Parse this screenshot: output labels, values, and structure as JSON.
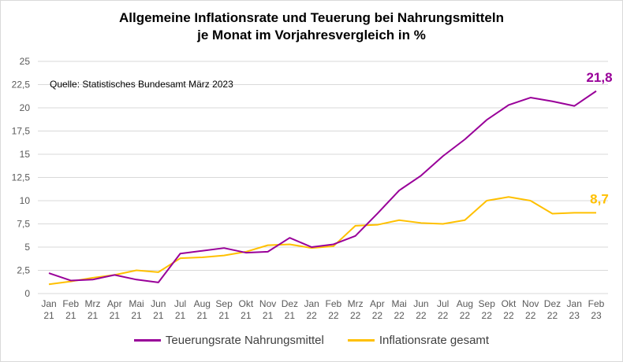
{
  "chart_data": {
    "type": "line",
    "title": [
      "Allgemeine Inflationsrate und Teuerung bei Nahrungsmitteln",
      "je Monat im Vorjahresvergleich in %"
    ],
    "annotation": "Quelle: Statistisches Bundesamt März 2023",
    "categories": [
      [
        "Jan",
        "21"
      ],
      [
        "Feb",
        "21"
      ],
      [
        "Mrz",
        "21"
      ],
      [
        "Apr",
        "21"
      ],
      [
        "Mai",
        "21"
      ],
      [
        "Jun",
        "21"
      ],
      [
        "Jul",
        "21"
      ],
      [
        "Aug",
        "21"
      ],
      [
        "Sep",
        "21"
      ],
      [
        "Okt",
        "21"
      ],
      [
        "Nov",
        "21"
      ],
      [
        "Dez",
        "21"
      ],
      [
        "Jan",
        "22"
      ],
      [
        "Feb",
        "22"
      ],
      [
        "Mrz",
        "22"
      ],
      [
        "Apr",
        "22"
      ],
      [
        "Mai",
        "22"
      ],
      [
        "Jun",
        "22"
      ],
      [
        "Jul",
        "22"
      ],
      [
        "Aug",
        "22"
      ],
      [
        "Sep",
        "22"
      ],
      [
        "Okt",
        "22"
      ],
      [
        "Nov",
        "22"
      ],
      [
        "Dez",
        "22"
      ],
      [
        "Jan",
        "23"
      ],
      [
        "Feb",
        "23"
      ]
    ],
    "yticks": [
      "0",
      "2,5",
      "5",
      "7,5",
      "10",
      "12,5",
      "15",
      "17,5",
      "20",
      "22,5",
      "25"
    ],
    "ylim": [
      0,
      25
    ],
    "grid": true,
    "legend_placement": "bottom",
    "series": [
      {
        "name": "Teuerungsrate Nahrungsmittel",
        "color": "#990099",
        "end_label": "21,8",
        "values": [
          2.2,
          1.4,
          1.5,
          2.0,
          1.5,
          1.2,
          4.3,
          4.6,
          4.9,
          4.4,
          4.5,
          6.0,
          5.0,
          5.3,
          6.2,
          8.6,
          11.1,
          12.7,
          14.8,
          16.6,
          18.7,
          20.3,
          21.1,
          20.7,
          20.2,
          21.8
        ]
      },
      {
        "name": "Inflationsrate gesamt",
        "color": "#FFC000",
        "end_label": "8,7",
        "values": [
          1.0,
          1.3,
          1.7,
          2.0,
          2.5,
          2.3,
          3.8,
          3.9,
          4.1,
          4.5,
          5.2,
          5.3,
          4.9,
          5.1,
          7.3,
          7.4,
          7.9,
          7.6,
          7.5,
          7.9,
          10.0,
          10.4,
          10.0,
          8.6,
          8.7,
          8.7
        ]
      }
    ]
  }
}
